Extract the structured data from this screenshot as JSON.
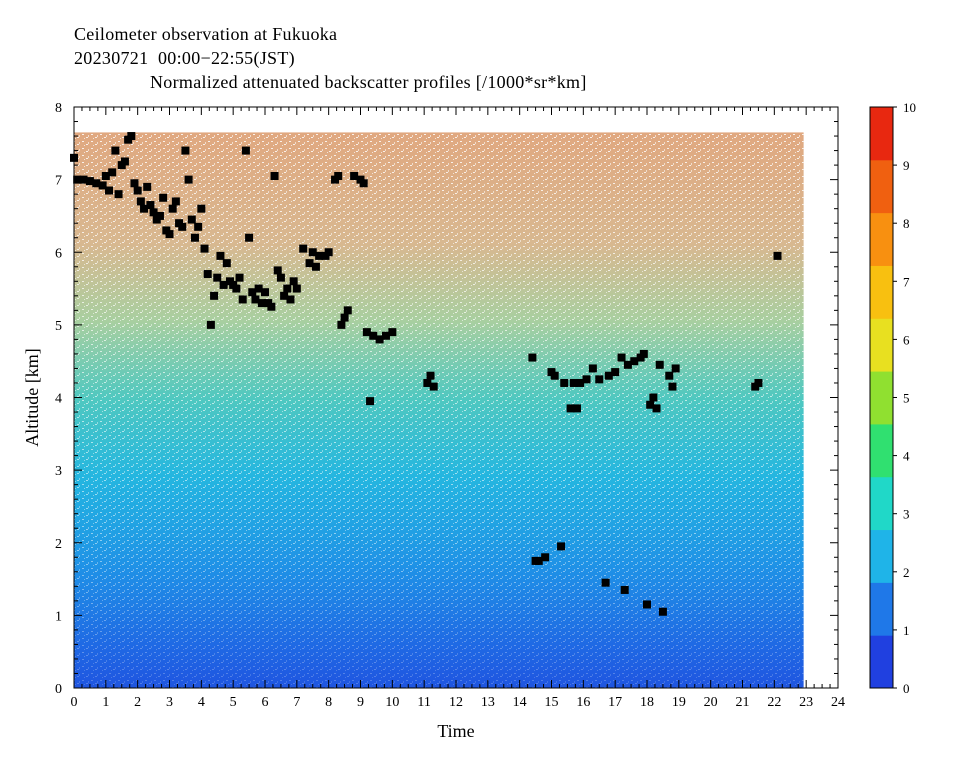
{
  "header": {
    "line1": "Ceilometer observation at Fukuoka",
    "line2": "20230721  00:00−22:55(JST)",
    "line3": "Normalized attenuated backscatter profiles [/1000*sr*km]"
  },
  "chart_data": {
    "type": "heatmap",
    "xlabel": "Time",
    "ylabel": "Altitude [km]",
    "xlim": [
      0,
      24
    ],
    "ylim": [
      0,
      8
    ],
    "x_ticks": [
      "0",
      "1",
      "2",
      "3",
      "4",
      "5",
      "6",
      "7",
      "8",
      "9",
      "10",
      "11",
      "12",
      "13",
      "14",
      "15",
      "16",
      "17",
      "18",
      "19",
      "20",
      "21",
      "22",
      "23",
      "24"
    ],
    "y_ticks": [
      "0",
      "1",
      "2",
      "3",
      "4",
      "5",
      "6",
      "7",
      "8"
    ],
    "data_extent": {
      "time_end": 22.92,
      "altitude_top": 7.65
    },
    "colorbar": {
      "min": 0,
      "max": 10,
      "ticks": [
        "0",
        "1",
        "2",
        "3",
        "4",
        "5",
        "6",
        "7",
        "8",
        "9",
        "10"
      ],
      "colors": [
        "#2040e0",
        "#1f78e8",
        "#1fb4e8",
        "#20d8c8",
        "#30e070",
        "#90e030",
        "#e8e020",
        "#f8c010",
        "#f89010",
        "#f06010",
        "#e82810"
      ]
    },
    "cloud_base_points": [
      [
        0.0,
        7.3
      ],
      [
        0.1,
        7.0
      ],
      [
        0.3,
        7.0
      ],
      [
        0.5,
        6.98
      ],
      [
        0.7,
        6.95
      ],
      [
        0.9,
        6.92
      ],
      [
        1.0,
        7.05
      ],
      [
        1.1,
        6.85
      ],
      [
        1.2,
        7.1
      ],
      [
        1.3,
        7.4
      ],
      [
        1.4,
        6.8
      ],
      [
        1.5,
        7.2
      ],
      [
        1.6,
        7.25
      ],
      [
        1.7,
        7.55
      ],
      [
        1.8,
        7.6
      ],
      [
        1.9,
        6.95
      ],
      [
        2.0,
        6.85
      ],
      [
        2.1,
        6.7
      ],
      [
        2.2,
        6.6
      ],
      [
        2.3,
        6.9
      ],
      [
        2.4,
        6.65
      ],
      [
        2.5,
        6.55
      ],
      [
        2.6,
        6.45
      ],
      [
        2.7,
        6.5
      ],
      [
        2.8,
        6.75
      ],
      [
        2.9,
        6.3
      ],
      [
        3.0,
        6.25
      ],
      [
        3.1,
        6.6
      ],
      [
        3.2,
        6.7
      ],
      [
        3.3,
        6.4
      ],
      [
        3.4,
        6.35
      ],
      [
        3.5,
        7.4
      ],
      [
        3.6,
        7.0
      ],
      [
        3.7,
        6.45
      ],
      [
        3.8,
        6.2
      ],
      [
        3.9,
        6.35
      ],
      [
        4.0,
        6.6
      ],
      [
        4.1,
        6.05
      ],
      [
        4.2,
        5.7
      ],
      [
        4.3,
        5.0
      ],
      [
        4.4,
        5.4
      ],
      [
        4.5,
        5.65
      ],
      [
        4.6,
        5.95
      ],
      [
        4.7,
        5.55
      ],
      [
        4.8,
        5.85
      ],
      [
        4.9,
        5.6
      ],
      [
        5.0,
        5.55
      ],
      [
        5.1,
        5.5
      ],
      [
        5.2,
        5.65
      ],
      [
        5.3,
        5.35
      ],
      [
        5.4,
        7.4
      ],
      [
        5.5,
        6.2
      ],
      [
        5.6,
        5.45
      ],
      [
        5.7,
        5.35
      ],
      [
        5.8,
        5.5
      ],
      [
        5.9,
        5.3
      ],
      [
        6.0,
        5.45
      ],
      [
        6.1,
        5.3
      ],
      [
        6.2,
        5.25
      ],
      [
        6.3,
        7.05
      ],
      [
        6.4,
        5.75
      ],
      [
        6.5,
        5.65
      ],
      [
        6.6,
        5.4
      ],
      [
        6.7,
        5.5
      ],
      [
        6.8,
        5.35
      ],
      [
        6.9,
        5.6
      ],
      [
        7.0,
        5.5
      ],
      [
        7.2,
        6.05
      ],
      [
        7.4,
        5.85
      ],
      [
        7.5,
        6.0
      ],
      [
        7.6,
        5.8
      ],
      [
        7.7,
        5.95
      ],
      [
        7.9,
        5.95
      ],
      [
        8.0,
        6.0
      ],
      [
        8.2,
        7.0
      ],
      [
        8.3,
        7.05
      ],
      [
        8.4,
        5.0
      ],
      [
        8.5,
        5.1
      ],
      [
        8.6,
        5.2
      ],
      [
        8.8,
        7.05
      ],
      [
        9.0,
        7.0
      ],
      [
        9.1,
        6.95
      ],
      [
        9.2,
        4.9
      ],
      [
        9.3,
        3.95
      ],
      [
        9.4,
        4.85
      ],
      [
        9.6,
        4.8
      ],
      [
        9.8,
        4.85
      ],
      [
        10.0,
        4.9
      ],
      [
        11.1,
        4.2
      ],
      [
        11.2,
        4.3
      ],
      [
        11.3,
        4.15
      ],
      [
        14.4,
        4.55
      ],
      [
        14.5,
        1.75
      ],
      [
        14.6,
        1.75
      ],
      [
        14.8,
        1.8
      ],
      [
        15.0,
        4.35
      ],
      [
        15.1,
        4.3
      ],
      [
        15.3,
        1.95
      ],
      [
        15.4,
        4.2
      ],
      [
        15.6,
        3.85
      ],
      [
        15.7,
        4.2
      ],
      [
        15.8,
        3.85
      ],
      [
        15.9,
        4.2
      ],
      [
        16.1,
        4.25
      ],
      [
        16.3,
        4.4
      ],
      [
        16.5,
        4.25
      ],
      [
        16.7,
        1.45
      ],
      [
        16.8,
        4.3
      ],
      [
        17.0,
        4.35
      ],
      [
        17.2,
        4.55
      ],
      [
        17.3,
        1.35
      ],
      [
        17.4,
        4.45
      ],
      [
        17.6,
        4.5
      ],
      [
        17.8,
        4.55
      ],
      [
        17.9,
        4.6
      ],
      [
        18.0,
        1.15
      ],
      [
        18.1,
        3.9
      ],
      [
        18.2,
        4.0
      ],
      [
        18.3,
        3.85
      ],
      [
        18.4,
        4.45
      ],
      [
        18.5,
        1.05
      ],
      [
        18.7,
        4.3
      ],
      [
        18.8,
        4.15
      ],
      [
        18.9,
        4.4
      ],
      [
        21.4,
        4.15
      ],
      [
        21.5,
        4.2
      ],
      [
        22.1,
        5.95
      ]
    ]
  }
}
